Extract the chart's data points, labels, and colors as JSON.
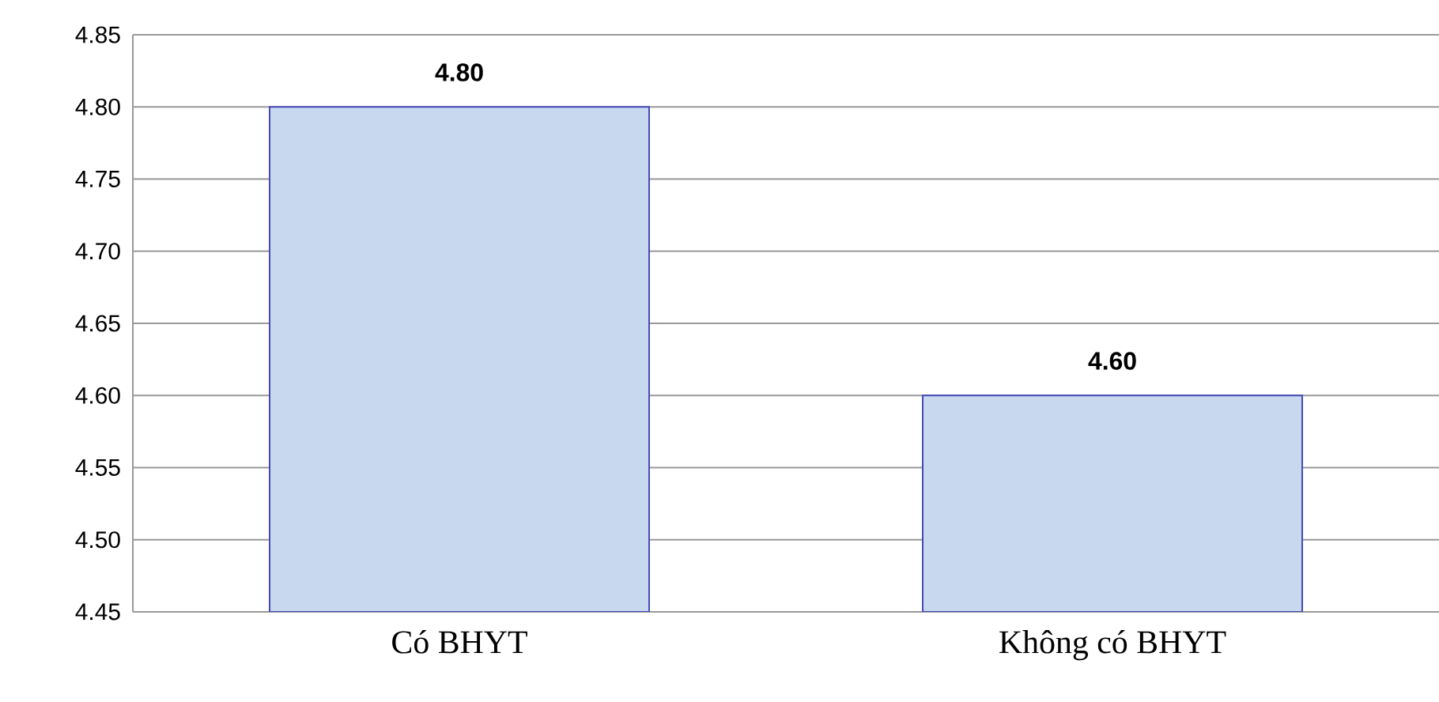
{
  "chart_data": {
    "type": "bar",
    "categories": [
      "Có BHYT",
      "Không có BHYT"
    ],
    "values": [
      4.8,
      4.6
    ],
    "value_labels": [
      "4.80",
      "4.60"
    ],
    "color": "#c8d8ee",
    "ylim": [
      4.45,
      4.85
    ],
    "yticks": [
      {
        "value": 4.45,
        "label": "4.45"
      },
      {
        "value": 4.5,
        "label": "4.50"
      },
      {
        "value": 4.55,
        "label": "4.55"
      },
      {
        "value": 4.6,
        "label": "4.60"
      },
      {
        "value": 4.65,
        "label": "4.65"
      },
      {
        "value": 4.7,
        "label": "4.70"
      },
      {
        "value": 4.75,
        "label": "4.75"
      },
      {
        "value": 4.8,
        "label": "4.80"
      },
      {
        "value": 4.85,
        "label": "4.85"
      }
    ],
    "grid": "y"
  }
}
